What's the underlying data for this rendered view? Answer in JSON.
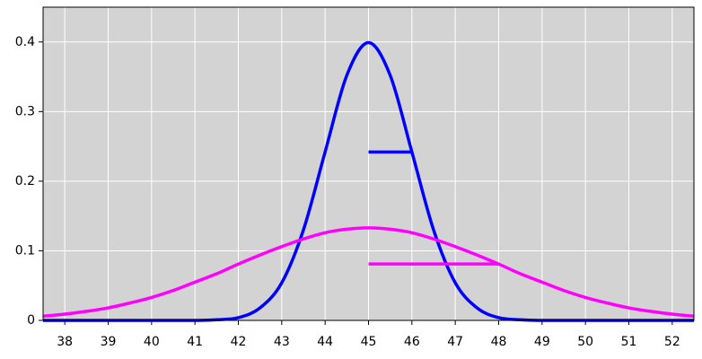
{
  "chart_data": {
    "type": "line",
    "x": [
      37.5,
      38,
      38.5,
      39,
      39.5,
      40,
      40.5,
      41,
      41.5,
      42,
      42.5,
      43,
      43.5,
      44,
      44.5,
      45,
      45.5,
      46,
      46.5,
      47,
      47.5,
      48,
      48.5,
      49,
      49.5,
      50,
      50.5,
      51,
      51.5,
      52,
      52.5
    ],
    "series": [
      {
        "color": "#0000ff",
        "values": [
          0,
          0,
          0,
          0,
          0,
          0,
          0,
          0,
          0.001,
          0.004,
          0.018,
          0.054,
          0.13,
          0.242,
          0.352,
          0.399,
          0.352,
          0.242,
          0.13,
          0.054,
          0.018,
          0.004,
          0.001,
          0,
          0,
          0,
          0,
          0,
          0,
          0,
          0
        ]
      },
      {
        "color": "#ff00ff",
        "values": [
          0.006,
          0.009,
          0.013,
          0.018,
          0.025,
          0.033,
          0.043,
          0.055,
          0.067,
          0.081,
          0.094,
          0.106,
          0.117,
          0.126,
          0.131,
          0.133,
          0.131,
          0.126,
          0.117,
          0.106,
          0.094,
          0.081,
          0.067,
          0.055,
          0.043,
          0.033,
          0.025,
          0.018,
          0.013,
          0.009,
          0.006
        ]
      }
    ],
    "segments": [
      {
        "color": "#0000ff",
        "x": [
          45,
          46
        ],
        "values": [
          0.242,
          0.242
        ]
      },
      {
        "color": "#ff00ff",
        "x": [
          45,
          48
        ],
        "values": [
          0.081,
          0.081
        ]
      }
    ],
    "xlim": [
      37.5,
      52.5
    ],
    "xticks": [
      38,
      39,
      40,
      41,
      42,
      43,
      44,
      45,
      46,
      47,
      48,
      49,
      50,
      51,
      52
    ],
    "ylim": [
      0,
      0.45
    ],
    "yticks": [
      0,
      0.1,
      0.2,
      0.3,
      0.4
    ],
    "grid": true,
    "background": "#d3d3d3"
  }
}
